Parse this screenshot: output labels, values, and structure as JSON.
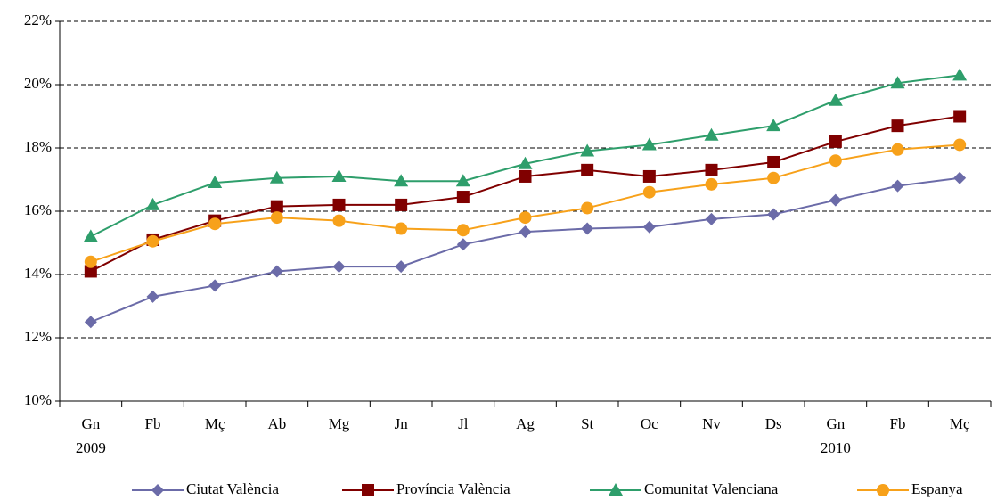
{
  "chart_data": {
    "type": "line",
    "categories": [
      "Gn",
      "Fb",
      "Mç",
      "Ab",
      "Mg",
      "Jn",
      "Jl",
      "Ag",
      "St",
      "Oc",
      "Nv",
      "Ds",
      "Gn",
      "Fb",
      "Mç"
    ],
    "category_years": [
      "2009",
      null,
      null,
      null,
      null,
      null,
      null,
      null,
      null,
      null,
      null,
      null,
      "2010",
      null,
      null
    ],
    "series": [
      {
        "name": "Ciutat València",
        "color": "#6b6ba8",
        "marker": "diamond",
        "values": [
          12.5,
          13.3,
          13.65,
          14.1,
          14.25,
          14.25,
          14.95,
          15.35,
          15.45,
          15.5,
          15.75,
          15.9,
          16.35,
          16.8,
          17.05
        ]
      },
      {
        "name": "Província València",
        "color": "#800000",
        "marker": "square",
        "values": [
          14.1,
          15.1,
          15.7,
          16.15,
          16.2,
          16.2,
          16.45,
          17.1,
          17.3,
          17.1,
          17.3,
          17.55,
          18.2,
          18.7,
          19.0
        ]
      },
      {
        "name": "Comunitat Valenciana",
        "color": "#2e9e6b",
        "marker": "triangle",
        "values": [
          15.2,
          16.2,
          16.9,
          17.05,
          17.1,
          16.95,
          16.95,
          17.5,
          17.9,
          18.1,
          18.4,
          18.7,
          19.5,
          20.05,
          20.3
        ]
      },
      {
        "name": "Espanya",
        "color": "#f7a11a",
        "marker": "circle",
        "values": [
          14.4,
          15.05,
          15.6,
          15.8,
          15.7,
          15.45,
          15.4,
          15.8,
          16.1,
          16.6,
          16.85,
          17.05,
          17.6,
          17.95,
          18.1
        ]
      }
    ],
    "ylim": [
      10,
      22
    ],
    "yticks": [
      {
        "value": 10,
        "label": "10%"
      },
      {
        "value": 12,
        "label": "12%"
      },
      {
        "value": 14,
        "label": "14%"
      },
      {
        "value": 16,
        "label": "16%"
      },
      {
        "value": 18,
        "label": "18%"
      },
      {
        "value": 20,
        "label": "20%"
      },
      {
        "value": 22,
        "label": "22%"
      }
    ],
    "grid": true,
    "legend": "bottom"
  }
}
